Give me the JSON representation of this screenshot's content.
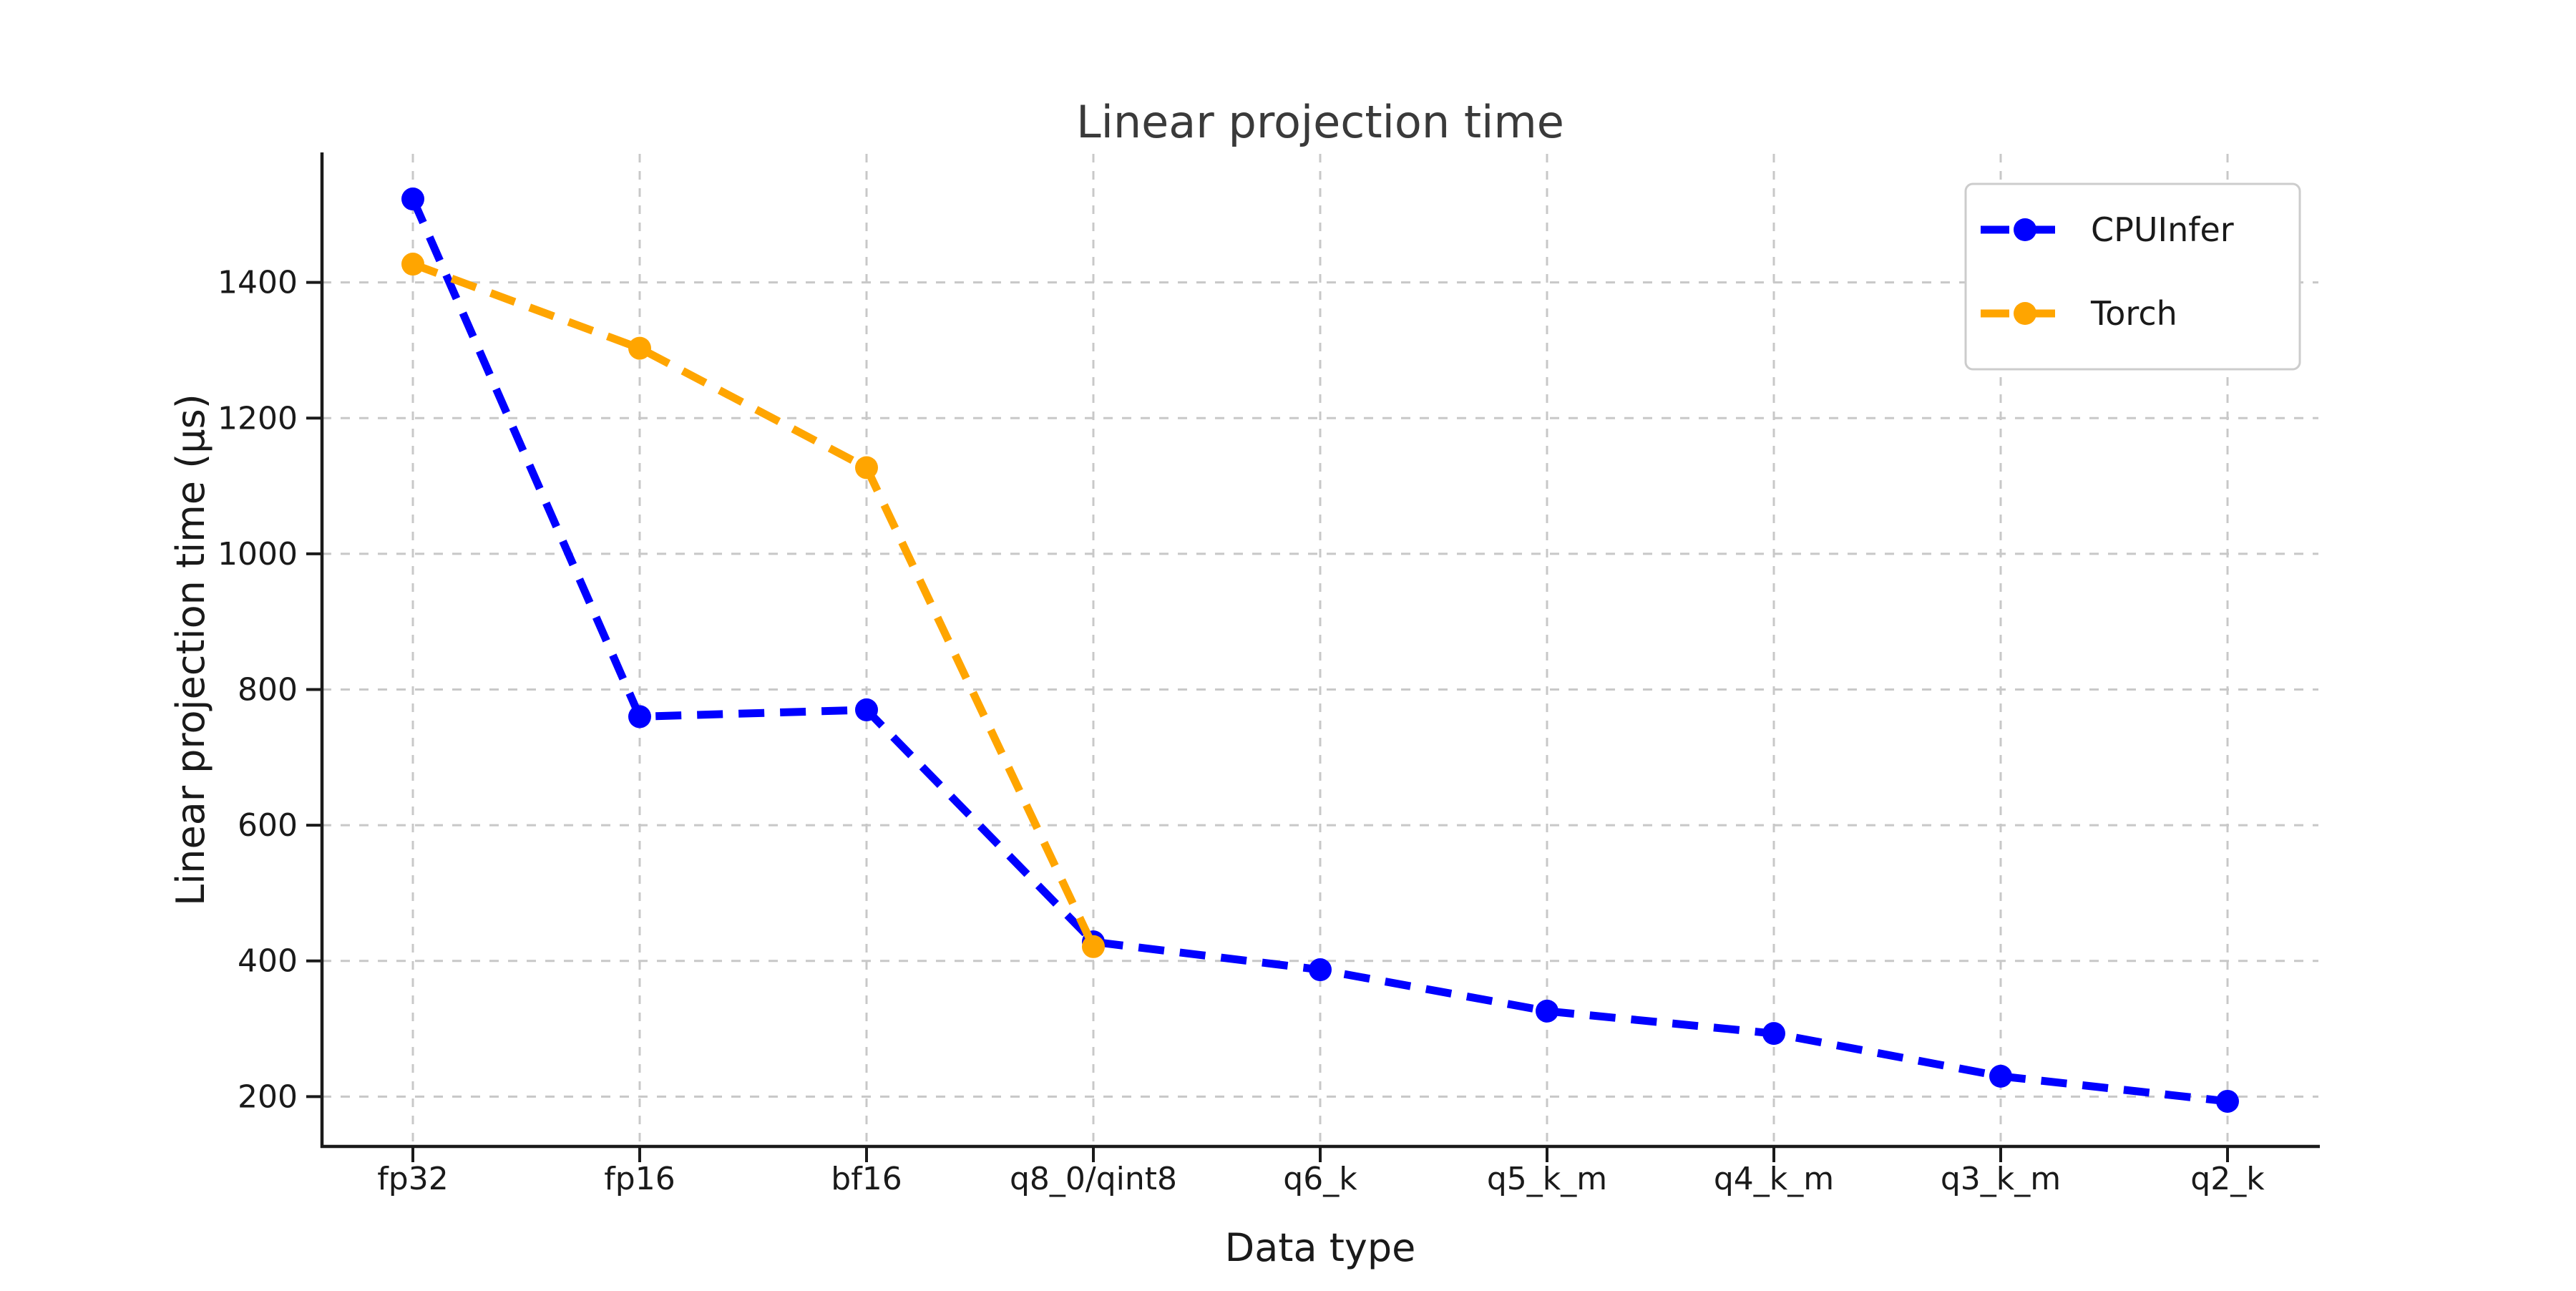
{
  "chart_data": {
    "type": "line",
    "title": "Linear projection time",
    "xlabel": "Data type",
    "ylabel": "Linear projection time (μs)",
    "categories": [
      "fp32",
      "fp16",
      "bf16",
      "q8_0/qint8",
      "q6_k",
      "q5_k_m",
      "q4_k_m",
      "q3_k_m",
      "q2_k"
    ],
    "series": [
      {
        "name": "CPUInfer",
        "color": "#0000ff",
        "values": [
          1523,
          760,
          770,
          428,
          387,
          326,
          293,
          230,
          193
        ]
      },
      {
        "name": "Torch",
        "color": "#ffa500",
        "values": [
          1427,
          1303,
          1127,
          421,
          null,
          null,
          null,
          null,
          null
        ]
      }
    ],
    "yticks": [
      200,
      400,
      600,
      800,
      1000,
      1200,
      1400
    ],
    "ylim": [
      127,
      1590
    ],
    "grid": true,
    "line_style": "dashed",
    "marker": "circle",
    "legend_position": "upper right",
    "colors": {
      "grid": "#c8c8c8",
      "axis": "#1a1a1a",
      "legend_border": "#cccccc",
      "background": "#ffffff"
    }
  }
}
